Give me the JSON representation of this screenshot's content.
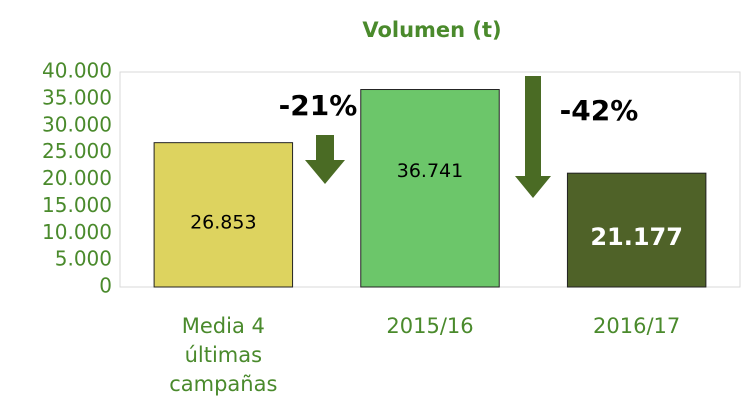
{
  "chart_data": {
    "type": "bar",
    "title": "Volumen (t)",
    "categories": [
      "Media 4 últimas campañas",
      "2015/16",
      "2016/17"
    ],
    "values": [
      26853,
      36741,
      21177
    ],
    "value_labels": [
      "26.853",
      "36.741",
      "21.177"
    ],
    "colors": [
      "#ddd35f",
      "#6cc66a",
      "#4f6228"
    ],
    "ylim": [
      0,
      40000
    ],
    "yticks": [
      0,
      {
        "value": 5000,
        "label": "5.000"
      },
      {
        "value": 10000,
        "label": "10.000"
      },
      {
        "value": 15000,
        "label": "15.000"
      },
      {
        "value": 20000,
        "label": "20.000"
      },
      {
        "value": 25000,
        "label": "25.000"
      },
      {
        "value": 30000,
        "label": "30.000"
      },
      {
        "value": 35000,
        "label": "35.000"
      },
      {
        "value": 40000,
        "label": "40.000"
      }
    ],
    "grid": false,
    "annotations": [
      "-21%",
      "-42%"
    ]
  }
}
